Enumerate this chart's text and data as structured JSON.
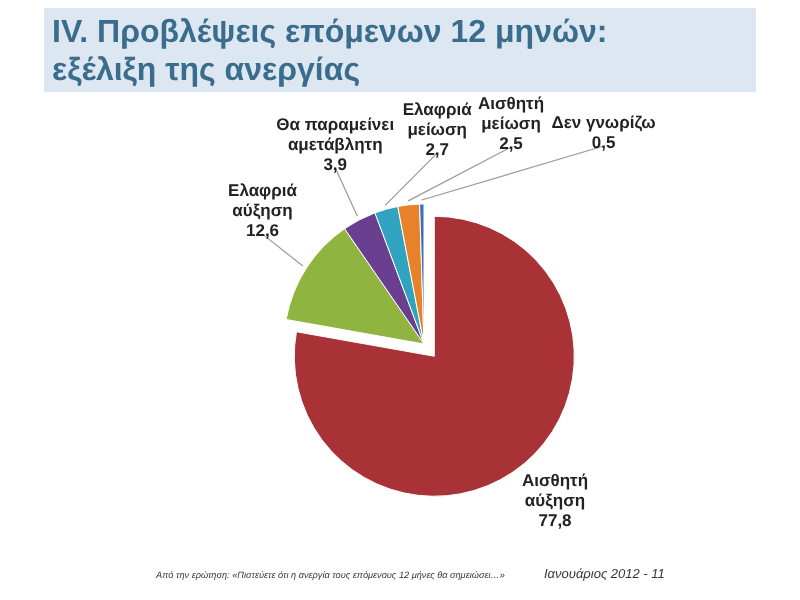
{
  "chart_data": {
    "type": "pie",
    "title": "IV. Προβλέψεις επόμενων 12 μηνών:\nεξέλιξη της ανεργίας",
    "categories": [
      "Αισθητή αύξηση",
      "Ελαφριά αύξηση",
      "Θα παραμείνει αμετάβλητη",
      "Ελαφριά μείωση",
      "Αισθητή μείωση",
      "Δεν γνωρίζω"
    ],
    "values": [
      77.8,
      12.6,
      3.9,
      2.7,
      2.5,
      0.5
    ],
    "value_labels": [
      "77,8",
      "12,6",
      "3,9",
      "2,7",
      "2,5",
      "0,5"
    ],
    "colors": [
      "#a83236",
      "#8fb440",
      "#6a3f8f",
      "#2fa3bf",
      "#e8822a",
      "#3d6fb5"
    ],
    "annotations": [
      "Από την ερώτηση: «Πιστεύετε ότι η ανεργία τους επόμενους 12 μήνες θα σημειώσει…»",
      "Ιανουάριος 2012 - 11"
    ]
  }
}
